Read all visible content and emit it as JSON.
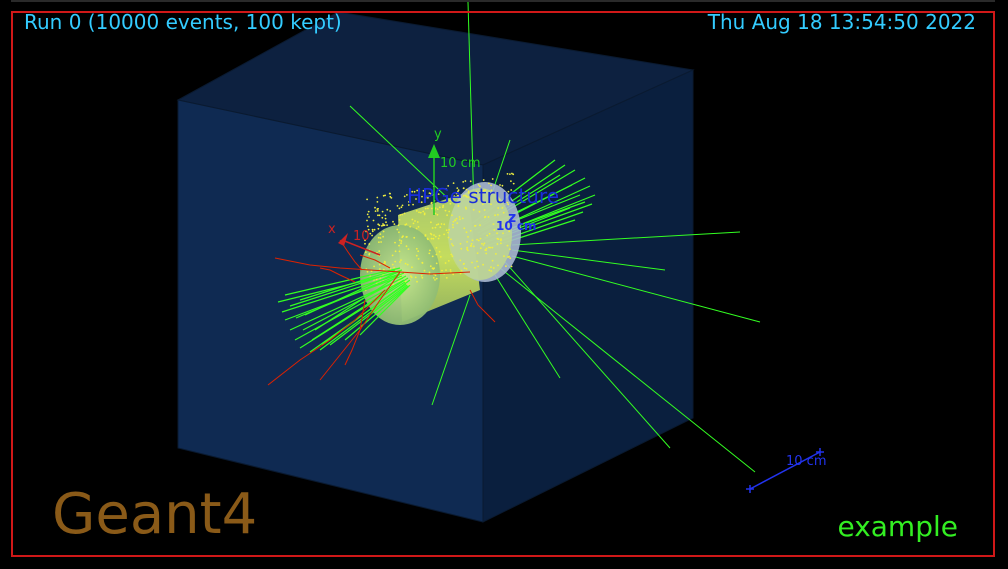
{
  "header": {
    "run_label": "Run 0 (10000 events, 100 kept)",
    "date_label": "Thu Aug 18 13:54:50 2022"
  },
  "footer": {
    "logo_text": "Geant4",
    "example_label": "example"
  },
  "scene": {
    "structure_label": "HPGe structure",
    "axes": {
      "x_label": "x",
      "y_label": "y",
      "z_label": "z",
      "x_scale": "10",
      "y_scale": "10 cm",
      "z_scale": "10 cm"
    },
    "scale_bar_label": "10 cm",
    "colors": {
      "frame": "#d01818",
      "text": "#33ccff",
      "world_box": "#0f2a52",
      "gamma_tracks": "#33ff22",
      "electron_tracks": "#dd2200",
      "hits": "#e8f040",
      "logo": "#8a5a18",
      "scale_bar": "#2233ee"
    }
  }
}
